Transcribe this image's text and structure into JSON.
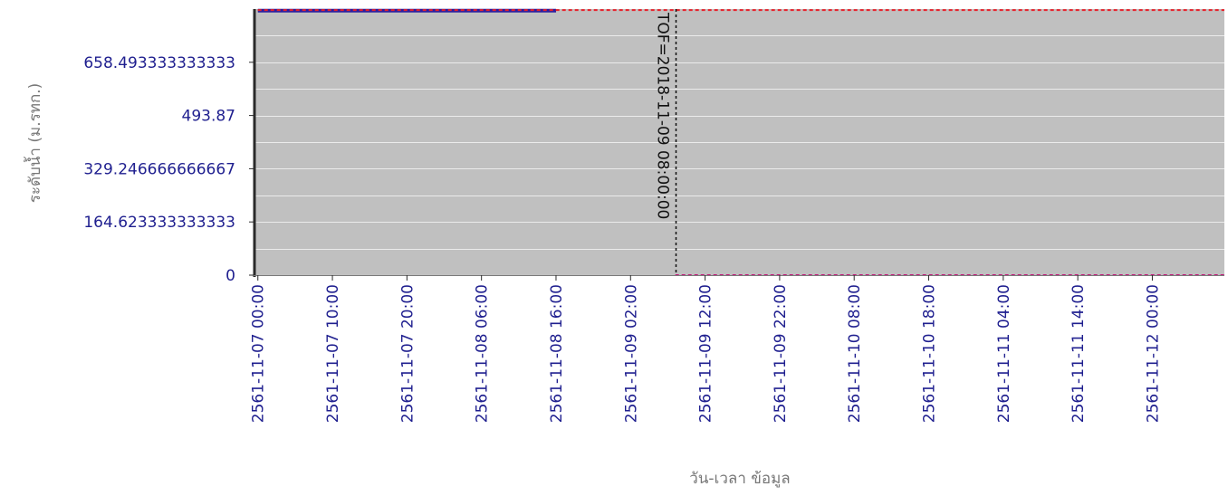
{
  "chart_data": {
    "type": "line",
    "title": "",
    "xlabel": "วัน-เวลา ข้อมูล",
    "ylabel": "ระดับน้ำ (ม.รทก.)",
    "ylim": [
      0,
      823.116666666667
    ],
    "y_ticks": [
      {
        "value": 0,
        "label": "0"
      },
      {
        "value": 164.623333333333,
        "label": "164.623333333333"
      },
      {
        "value": 329.246666666667,
        "label": "329.246666666667"
      },
      {
        "value": 493.87,
        "label": "493.87"
      },
      {
        "value": 658.493333333333,
        "label": "658.493333333333"
      }
    ],
    "y_minor_step": 82.3116666666667,
    "x_range": [
      "2561-11-06 23:40",
      "2561-11-12 09:40"
    ],
    "x_ticks": [
      "2561-11-07 00:00",
      "2561-11-07 10:00",
      "2561-11-07 20:00",
      "2561-11-08 06:00",
      "2561-11-08 16:00",
      "2561-11-09 02:00",
      "2561-11-09 12:00",
      "2561-11-09 22:00",
      "2561-11-10 08:00",
      "2561-11-10 18:00",
      "2561-11-11 04:00",
      "2561-11-11 14:00",
      "2561-11-12 00:00"
    ],
    "grid": true,
    "plot_background": "#c0c0c0",
    "series": [
      {
        "color": "#2b1ea0",
        "style": "solid",
        "points": [
          {
            "x": "2561-11-07 00:00",
            "y": 818
          },
          {
            "x": "2561-11-08 16:00",
            "y": 818
          }
        ]
      },
      {
        "color": "#e8202a",
        "style": "dashed",
        "points": [
          {
            "x": "2561-11-07 00:00",
            "y": 820
          },
          {
            "x": "2561-11-12 09:40",
            "y": 820
          }
        ]
      },
      {
        "color": "#c2187a",
        "style": "dashed",
        "points": [
          {
            "x": "2561-11-09 08:00",
            "y": 0
          },
          {
            "x": "2561-11-12 09:40",
            "y": 0
          }
        ]
      }
    ],
    "annotations": [
      {
        "type": "vertical-line",
        "x": "2561-11-09 08:00",
        "label": "TOF=2018-11-09 08:00:00",
        "color": "#111111",
        "style": "dashed"
      }
    ]
  }
}
